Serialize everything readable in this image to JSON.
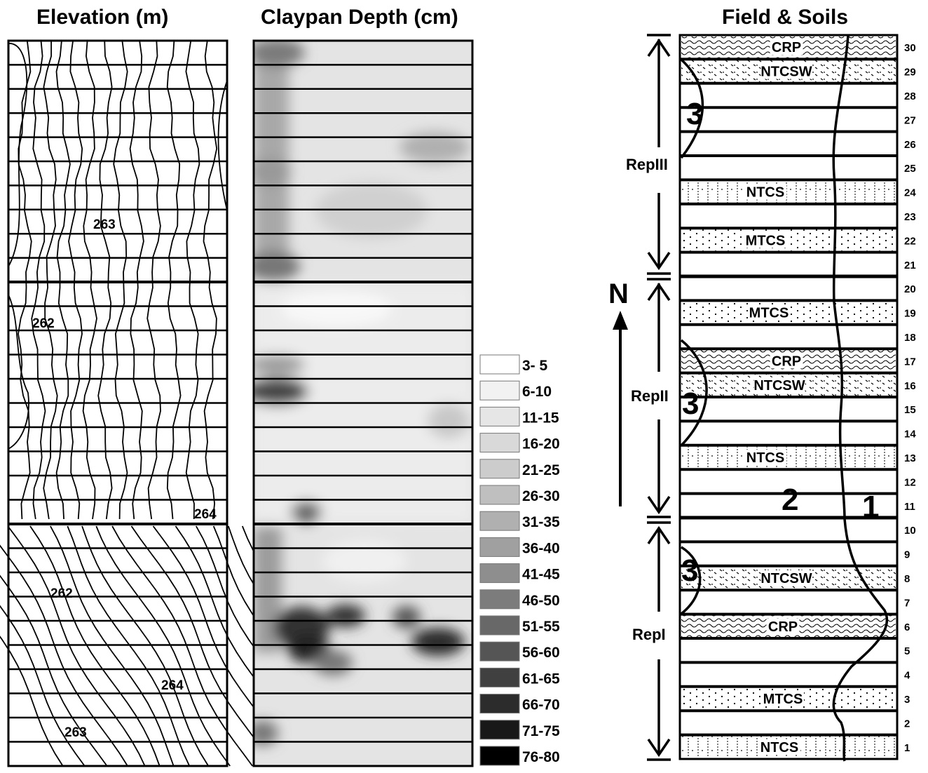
{
  "titles": {
    "elevation": "Elevation (m)",
    "claypan": "Claypan Depth (cm)",
    "field": "Field & Soils"
  },
  "elevation": {
    "contour_labels": [
      "263",
      "262",
      "264",
      "262",
      "264",
      "263"
    ]
  },
  "legend": {
    "items": [
      {
        "label": "3- 5",
        "color": "#ffffff"
      },
      {
        "label": "6-10",
        "color": "#f2f2f2"
      },
      {
        "label": "11-15",
        "color": "#e6e6e6"
      },
      {
        "label": "16-20",
        "color": "#d9d9d9"
      },
      {
        "label": "21-25",
        "color": "#cccccc"
      },
      {
        "label": "26-30",
        "color": "#bfbfbf"
      },
      {
        "label": "31-35",
        "color": "#b0b0b0"
      },
      {
        "label": "36-40",
        "color": "#a0a0a0"
      },
      {
        "label": "41-45",
        "color": "#8e8e8e"
      },
      {
        "label": "46-50",
        "color": "#7c7c7c"
      },
      {
        "label": "51-55",
        "color": "#686868"
      },
      {
        "label": "56-60",
        "color": "#555555"
      },
      {
        "label": "61-65",
        "color": "#404040"
      },
      {
        "label": "66-70",
        "color": "#2c2c2c"
      },
      {
        "label": "71-75",
        "color": "#181818"
      },
      {
        "label": "76-80",
        "color": "#000000"
      }
    ]
  },
  "field": {
    "north_label": "N",
    "reps": [
      "RepIII",
      "RepII",
      "RepI"
    ],
    "treatments": [
      {
        "plot": 30,
        "label": "CRP"
      },
      {
        "plot": 29,
        "label": "NTCSW"
      },
      {
        "plot": 24,
        "label": "NTCS"
      },
      {
        "plot": 22,
        "label": "MTCS"
      },
      {
        "plot": 19,
        "label": "MTCS"
      },
      {
        "plot": 17,
        "label": "CRP"
      },
      {
        "plot": 16,
        "label": "NTCSW"
      },
      {
        "plot": 13,
        "label": "NTCS"
      },
      {
        "plot": 8,
        "label": "NTCSW"
      },
      {
        "plot": 6,
        "label": "CRP"
      },
      {
        "plot": 3,
        "label": "MTCS"
      },
      {
        "plot": 1,
        "label": "NTCS"
      }
    ],
    "soil_labels": [
      "3",
      "3",
      "3",
      "2",
      "1"
    ],
    "plot_numbers": [
      "30",
      "29",
      "28",
      "27",
      "26",
      "25",
      "24",
      "23",
      "22",
      "21",
      "20",
      "19",
      "18",
      "17",
      "16",
      "15",
      "14",
      "13",
      "12",
      "11",
      "10",
      "9",
      "8",
      "7",
      "6",
      "5",
      "4",
      "3",
      "2",
      "1"
    ]
  },
  "colors": {
    "accent": "#000000"
  }
}
